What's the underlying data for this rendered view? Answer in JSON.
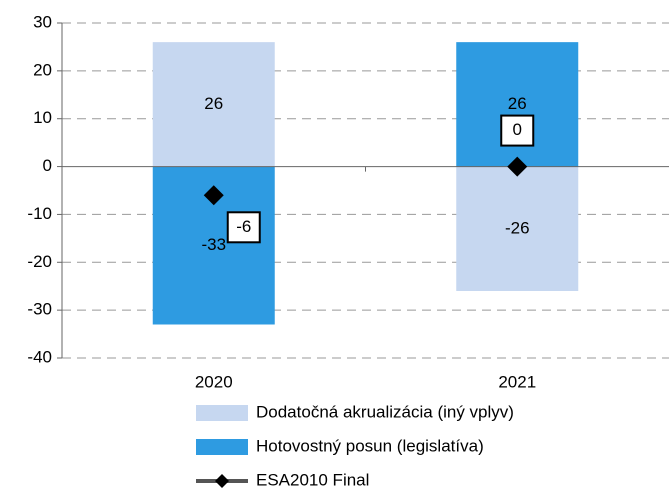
{
  "chart_data": {
    "type": "bar",
    "categories": [
      "2020",
      "2021"
    ],
    "series": [
      {
        "name": "Dodatočná akrualizácia (iný vplyv)",
        "color": "#c6d7f0",
        "values": [
          26,
          -26
        ]
      },
      {
        "name": "Hotovostný posun (legislatíva)",
        "color": "#2e9be1",
        "values": [
          -33,
          26
        ]
      },
      {
        "name": "ESA2010 Final",
        "color": "#000000",
        "type": "line",
        "values": [
          -6,
          0
        ]
      }
    ],
    "ylim": [
      -40,
      30
    ],
    "yticks": [
      -40,
      -30,
      -20,
      -10,
      0,
      10,
      20,
      30
    ],
    "grid": true,
    "legend": "bottom"
  }
}
